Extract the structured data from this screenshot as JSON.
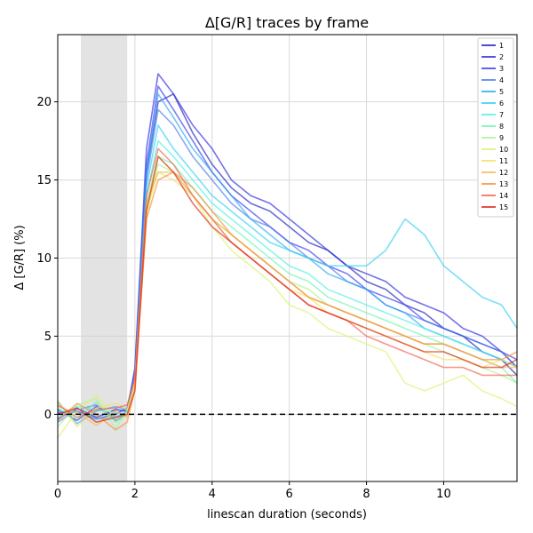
{
  "chart_data": {
    "type": "line",
    "title": "Δ[G/R] traces by frame",
    "xlabel": "linescan duration (seconds)",
    "ylabel": "Δ [G/R] (%)",
    "xlim": [
      0,
      11.9
    ],
    "ylim": [
      -4.3,
      24.3
    ],
    "xticks": [
      0,
      2,
      4,
      6,
      8,
      10
    ],
    "xtick_labels": [
      "0",
      "2",
      "4",
      "6",
      "8",
      "10"
    ],
    "yticks": [
      0,
      5,
      10,
      15,
      20
    ],
    "ytick_labels": [
      "0",
      "5",
      "10",
      "15",
      "20"
    ],
    "grid": true,
    "legend_position": "top-right",
    "shaded_span": [
      0.6,
      1.8
    ],
    "baseline": 0,
    "x": [
      0,
      0.5,
      1.0,
      1.5,
      1.8,
      2.0,
      2.3,
      2.6,
      3.0,
      3.5,
      4.0,
      4.5,
      5.0,
      5.5,
      6.0,
      6.5,
      7.0,
      7.5,
      8.0,
      8.5,
      9.0,
      9.5,
      10.0,
      10.5,
      11.0,
      11.5,
      11.9
    ],
    "series": [
      {
        "name": "1",
        "color": "#1f1fbf",
        "values": [
          -0.3,
          0.4,
          -0.2,
          0.3,
          0.2,
          2.5,
          15.5,
          20.0,
          20.5,
          18.0,
          16.0,
          14.5,
          13.5,
          13.0,
          12.0,
          11.0,
          10.5,
          9.5,
          8.5,
          8.0,
          7.0,
          6.5,
          5.5,
          5.0,
          4.0,
          3.5,
          2.5
        ]
      },
      {
        "name": "2",
        "color": "#2a2ae0",
        "values": [
          0.3,
          -0.4,
          0.5,
          -0.2,
          0.1,
          3.0,
          17.0,
          21.8,
          20.5,
          18.5,
          17.0,
          15.0,
          14.0,
          13.5,
          12.5,
          11.5,
          10.5,
          9.5,
          9.0,
          8.5,
          7.5,
          7.0,
          6.5,
          5.5,
          5.0,
          4.0,
          3.0
        ]
      },
      {
        "name": "3",
        "color": "#3a3af0",
        "values": [
          0.1,
          0.2,
          -0.3,
          0.0,
          0.4,
          2.8,
          16.0,
          21.0,
          19.5,
          17.5,
          15.5,
          14.0,
          13.0,
          12.0,
          11.0,
          10.5,
          9.5,
          9.0,
          8.0,
          7.5,
          7.0,
          6.0,
          5.5,
          5.0,
          4.5,
          4.0,
          3.5
        ]
      },
      {
        "name": "4",
        "color": "#4a7ae8",
        "values": [
          -0.5,
          0.3,
          0.6,
          -0.4,
          0.0,
          2.6,
          15.0,
          19.5,
          18.5,
          16.5,
          15.0,
          13.5,
          12.5,
          12.0,
          11.0,
          10.0,
          9.5,
          8.5,
          8.0,
          7.0,
          6.5,
          6.0,
          5.5,
          5.0,
          4.5,
          4.0,
          3.0
        ]
      },
      {
        "name": "5",
        "color": "#2aa8f5",
        "values": [
          0.8,
          -0.6,
          0.2,
          0.5,
          0.3,
          2.4,
          15.5,
          20.5,
          19.0,
          17.0,
          15.5,
          14.0,
          12.5,
          11.5,
          10.5,
          10.0,
          9.0,
          8.5,
          8.0,
          7.0,
          6.5,
          5.5,
          5.0,
          4.5,
          4.0,
          3.5,
          3.0
        ]
      },
      {
        "name": "6",
        "color": "#30d0f5",
        "values": [
          0.2,
          0.1,
          -0.3,
          -0.2,
          0.2,
          2.2,
          14.5,
          18.5,
          17.0,
          15.5,
          14.0,
          13.0,
          12.0,
          11.0,
          10.5,
          10.0,
          9.5,
          9.5,
          9.5,
          10.5,
          12.5,
          11.5,
          9.5,
          8.5,
          7.5,
          7.0,
          5.5
        ]
      },
      {
        "name": "7",
        "color": "#50f0e0",
        "values": [
          -0.2,
          0.5,
          0.3,
          0.1,
          -0.1,
          2.0,
          14.0,
          17.5,
          16.5,
          15.0,
          13.5,
          12.5,
          11.5,
          10.5,
          9.5,
          9.0,
          8.0,
          7.5,
          7.0,
          6.5,
          6.0,
          5.5,
          5.0,
          4.5,
          4.0,
          3.5,
          3.0
        ]
      },
      {
        "name": "8",
        "color": "#70f5b0",
        "values": [
          0.4,
          -0.3,
          0.8,
          -0.5,
          0.0,
          2.1,
          13.5,
          16.5,
          16.0,
          14.5,
          13.0,
          12.0,
          11.0,
          10.0,
          9.0,
          8.5,
          7.5,
          7.0,
          6.5,
          6.0,
          5.5,
          5.0,
          4.5,
          4.0,
          3.5,
          3.0,
          2.0
        ]
      },
      {
        "name": "9",
        "color": "#a8f590",
        "values": [
          -0.8,
          0.6,
          1.0,
          -0.9,
          0.2,
          1.9,
          13.0,
          16.0,
          15.5,
          14.0,
          12.5,
          11.5,
          10.5,
          9.5,
          8.5,
          8.0,
          7.0,
          6.5,
          6.0,
          5.5,
          5.0,
          4.5,
          4.0,
          3.5,
          3.0,
          2.5,
          2.0
        ]
      },
      {
        "name": "10",
        "color": "#d8f570",
        "values": [
          -1.5,
          0.2,
          1.2,
          -0.3,
          0.1,
          1.8,
          12.5,
          16.5,
          15.5,
          14.0,
          12.0,
          10.5,
          9.5,
          8.5,
          7.0,
          6.5,
          5.5,
          5.0,
          4.5,
          4.0,
          2.0,
          1.5,
          2.0,
          2.5,
          1.5,
          1.0,
          0.5
        ]
      },
      {
        "name": "11",
        "color": "#f5e060",
        "values": [
          0.9,
          -0.8,
          0.4,
          0.7,
          0.3,
          2.0,
          13.0,
          15.5,
          15.0,
          14.0,
          12.5,
          11.0,
          10.0,
          9.0,
          8.0,
          7.5,
          6.5,
          6.0,
          5.5,
          5.0,
          4.5,
          4.0,
          3.5,
          3.5,
          3.0,
          3.5,
          3.0
        ]
      },
      {
        "name": "12",
        "color": "#f5b850",
        "values": [
          0.5,
          0.1,
          -0.7,
          0.2,
          -0.2,
          2.2,
          13.5,
          15.5,
          15.5,
          14.0,
          12.5,
          11.5,
          10.5,
          9.5,
          8.5,
          7.5,
          7.0,
          6.5,
          6.0,
          5.5,
          5.0,
          4.5,
          4.5,
          4.0,
          3.5,
          3.0,
          3.0
        ]
      },
      {
        "name": "13",
        "color": "#f59040",
        "values": [
          -0.4,
          0.7,
          0.0,
          -1.0,
          -0.5,
          1.6,
          12.5,
          15.0,
          15.5,
          14.5,
          13.0,
          11.5,
          10.5,
          9.5,
          8.5,
          7.5,
          7.0,
          6.5,
          6.0,
          5.5,
          5.0,
          4.5,
          4.5,
          4.0,
          3.5,
          3.5,
          4.0
        ]
      },
      {
        "name": "14",
        "color": "#f56050",
        "values": [
          0.6,
          -0.2,
          0.3,
          0.4,
          0.6,
          2.3,
          14.0,
          17.0,
          16.0,
          14.0,
          12.5,
          11.0,
          10.0,
          9.0,
          8.0,
          7.0,
          6.5,
          6.0,
          5.0,
          4.5,
          4.0,
          3.5,
          3.0,
          3.0,
          2.5,
          2.5,
          2.5
        ]
      },
      {
        "name": "15",
        "color": "#e02818",
        "values": [
          0.0,
          0.4,
          -0.5,
          -0.2,
          0.0,
          1.5,
          13.0,
          16.5,
          15.5,
          13.5,
          12.0,
          11.0,
          10.0,
          9.0,
          8.0,
          7.0,
          6.5,
          6.0,
          5.5,
          5.0,
          4.5,
          4.0,
          4.0,
          3.5,
          3.0,
          3.0,
          3.5
        ]
      }
    ]
  }
}
